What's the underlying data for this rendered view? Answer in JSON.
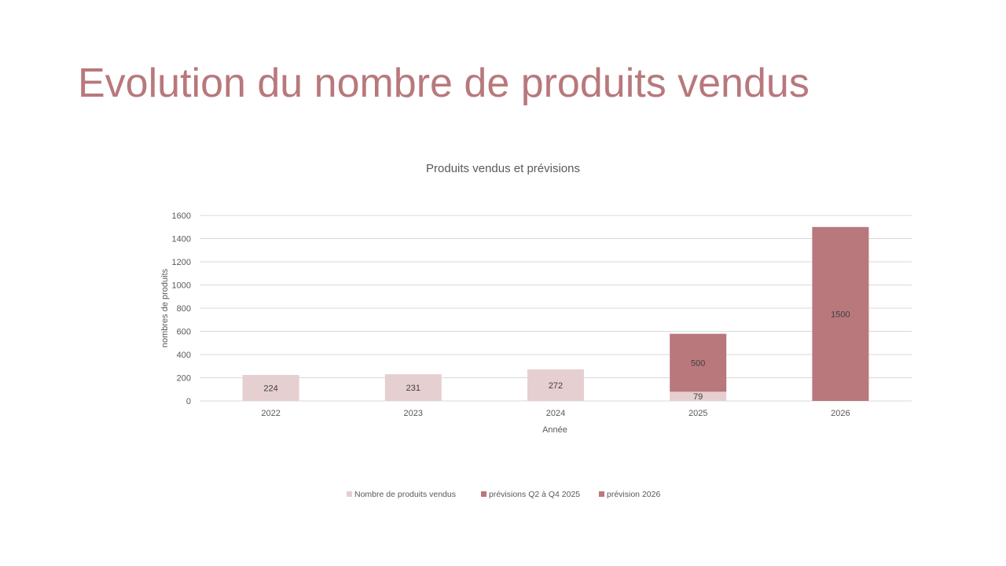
{
  "slide": {
    "title": "Evolution du nombre de produits vendus"
  },
  "colors": {
    "title": "#b8787c",
    "sold": "#e6cfd0",
    "forecast_2025": "#b8787c",
    "forecast_2026": "#b8787c",
    "grid": "#d9d9d9",
    "text": "#595959"
  },
  "chart_data": {
    "type": "bar",
    "stacked": true,
    "title": "Produits vendus et prévisions",
    "xlabel": "Année",
    "ylabel": "nombres de produits",
    "categories": [
      "2022",
      "2023",
      "2024",
      "2025",
      "2026"
    ],
    "series": [
      {
        "name": "Nombre de produits vendus",
        "color": "#e6cfd0",
        "values": [
          224,
          231,
          272,
          79,
          0
        ]
      },
      {
        "name": "prévisions Q2 à Q4 2025",
        "color": "#b8787c",
        "values": [
          0,
          0,
          0,
          500,
          0
        ]
      },
      {
        "name": "prévision 2026",
        "color": "#b8787c",
        "values": [
          0,
          0,
          0,
          0,
          1500
        ]
      }
    ],
    "data_labels": [
      [
        "224",
        "231",
        "272",
        "79",
        ""
      ],
      [
        "",
        "",
        "",
        "500",
        ""
      ],
      [
        "",
        "",
        "",
        "",
        "1500"
      ]
    ],
    "ylim": [
      0,
      1600
    ],
    "yticks": [
      "0",
      "200",
      "400",
      "600",
      "800",
      "1000",
      "1200",
      "1400",
      "1600"
    ],
    "grid": true,
    "legend_position": "bottom"
  }
}
